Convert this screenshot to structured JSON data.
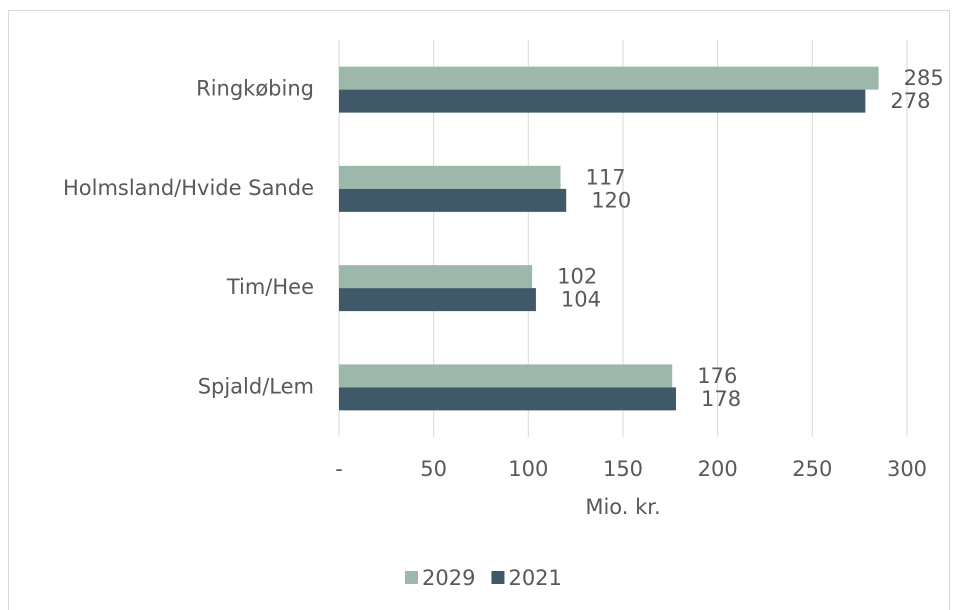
{
  "chart_data": {
    "type": "barh",
    "categories": [
      "Ringkøbing",
      "Holmsland/Hvide Sande",
      "Tim/Hee",
      "Spjald/Lem"
    ],
    "series": [
      {
        "name": "2029",
        "color": "#9db8ab",
        "values": [
          285,
          117,
          102,
          176
        ]
      },
      {
        "name": "2021",
        "color": "#3f5968",
        "values": [
          278,
          120,
          104,
          178
        ]
      }
    ],
    "xlabel": "Mio. kr.",
    "xlim": [
      0,
      300
    ],
    "xticks": [
      {
        "value": 0,
        "label": "-"
      },
      50,
      100,
      150,
      200,
      250,
      300
    ],
    "grid": true,
    "legend": "bottom"
  }
}
